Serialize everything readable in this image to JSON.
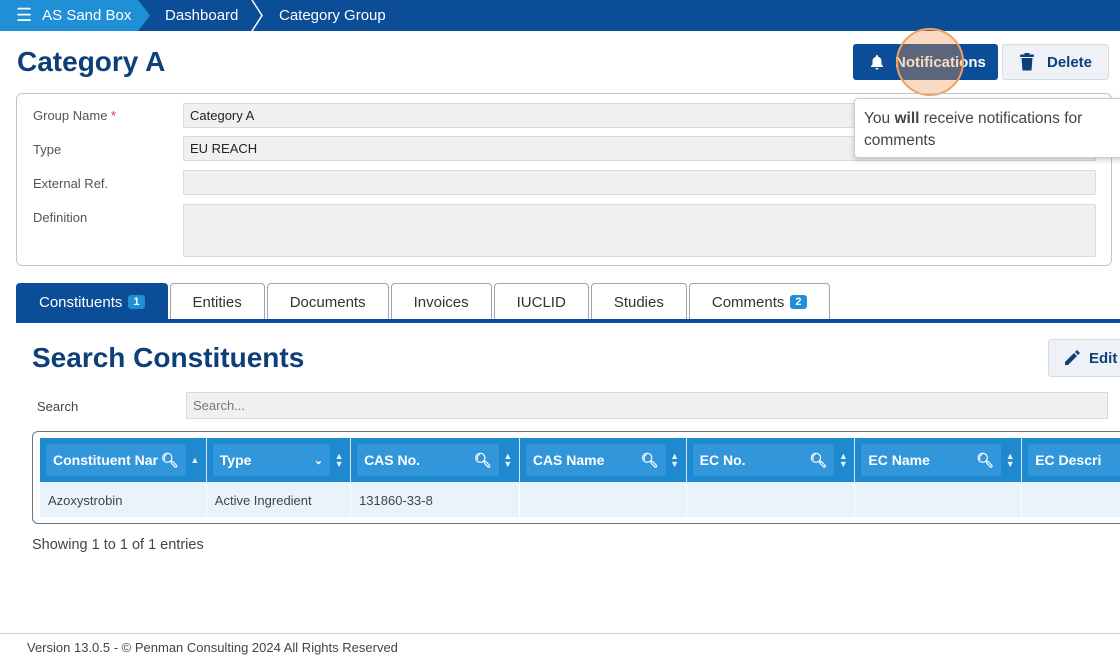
{
  "breadcrumb": {
    "app": "AS Sand Box",
    "items": [
      "Dashboard",
      "Category Group"
    ]
  },
  "page_title": "Category A",
  "actions": {
    "notifications": "Notifications",
    "delete": "Delete",
    "edit": "Edit c"
  },
  "tooltip": {
    "pre": "You ",
    "bold": "will",
    "post": " receive notifications for comments"
  },
  "form": {
    "group_name": {
      "label": "Group Name",
      "required": "*",
      "value": "Category A"
    },
    "type": {
      "label": "Type",
      "value": "EU REACH"
    },
    "external_ref": {
      "label": "External Ref.",
      "value": ""
    },
    "definition": {
      "label": "Definition",
      "value": ""
    }
  },
  "tabs": [
    {
      "label": "Constituents",
      "badge": "1"
    },
    {
      "label": "Entities"
    },
    {
      "label": "Documents"
    },
    {
      "label": "Invoices"
    },
    {
      "label": "IUCLID"
    },
    {
      "label": "Studies"
    },
    {
      "label": "Comments",
      "badge": "2"
    }
  ],
  "section_title": "Search Constituents",
  "search": {
    "label": "Search",
    "placeholder": "Search..."
  },
  "table": {
    "columns": [
      "Constituent Nar",
      "Type",
      "CAS No.",
      "CAS Name",
      "EC No.",
      "EC Name",
      "EC Descri"
    ],
    "rows": [
      [
        "Azoxystrobin",
        "Active Ingredient",
        "131860-33-8",
        "",
        "",
        "",
        ""
      ]
    ]
  },
  "entries_info": "Showing 1 to 1 of 1 entries",
  "footer": "Version 13.0.5 - © Penman Consulting 2024 All Rights Reserved"
}
